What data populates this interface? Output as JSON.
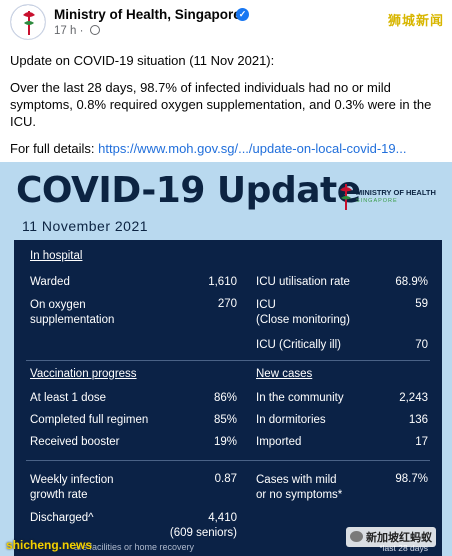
{
  "post": {
    "page_name": "Ministry of Health, Singapore",
    "time": "17 h",
    "watermark_top": "狮城新闻",
    "paragraph1": "Update on COVID-19 situation (11 Nov 2021):",
    "paragraph2": "Over the last 28 days, 98.7% of infected individuals had no or mild symptoms, 0.8% required oxygen supplementation, and 0.3% were in the ICU.",
    "details_label": "For full details: ",
    "details_link": "https://www.moh.gov.sg/.../update-on-local-covid-19..."
  },
  "infographic": {
    "title": "COVID-19 Update",
    "date": "11 November 2021",
    "logo_name": "MINISTRY OF HEALTH",
    "logo_sub": "SINGAPORE",
    "hospital": {
      "heading": "In hospital",
      "warded_label": "Warded",
      "warded_value": "1,610",
      "oxygen_label_1": "On oxygen",
      "oxygen_label_2": "supplementation",
      "oxygen_value": "270",
      "icu_rate_label": "ICU utilisation rate",
      "icu_rate_value": "68.9%",
      "icu_close_label_1": "ICU",
      "icu_close_label_2": "(Close monitoring)",
      "icu_close_value": "59",
      "icu_critical_label": "ICU (Critically ill)",
      "icu_critical_value": "70"
    },
    "vaccination": {
      "heading": "Vaccination progress",
      "dose1_label": "At least 1 dose",
      "dose1_value": "86%",
      "full_label": "Completed full regimen",
      "full_value": "85%",
      "booster_label": "Received booster",
      "booster_value": "19%"
    },
    "new_cases": {
      "heading": "New cases",
      "community_label": "In the community",
      "community_value": "2,243",
      "dorm_label": "In dormitories",
      "dorm_value": "136",
      "imported_label": "Imported",
      "imported_value": "17"
    },
    "bottom": {
      "growth_label_1": "Weekly infection",
      "growth_label_2": "growth rate",
      "growth_value": "0.87",
      "mild_label_1": "Cases with mild",
      "mild_label_2": "or no symptoms*",
      "mild_value": "98.7%",
      "discharged_label": "Discharged^",
      "discharged_value": "4,410",
      "discharged_seniors": "(609 seniors)",
      "care_note": "are facilities or home recovery",
      "last_days_note": "*last 28 days"
    }
  },
  "watermarks": {
    "bottom_left": "shicheng.news",
    "bottom_right": "新加坡红蚂蚁"
  },
  "colors": {
    "panel": "#0b2246",
    "background": "#b9d9ef",
    "link": "#216fdb",
    "verified": "#1877f2"
  }
}
